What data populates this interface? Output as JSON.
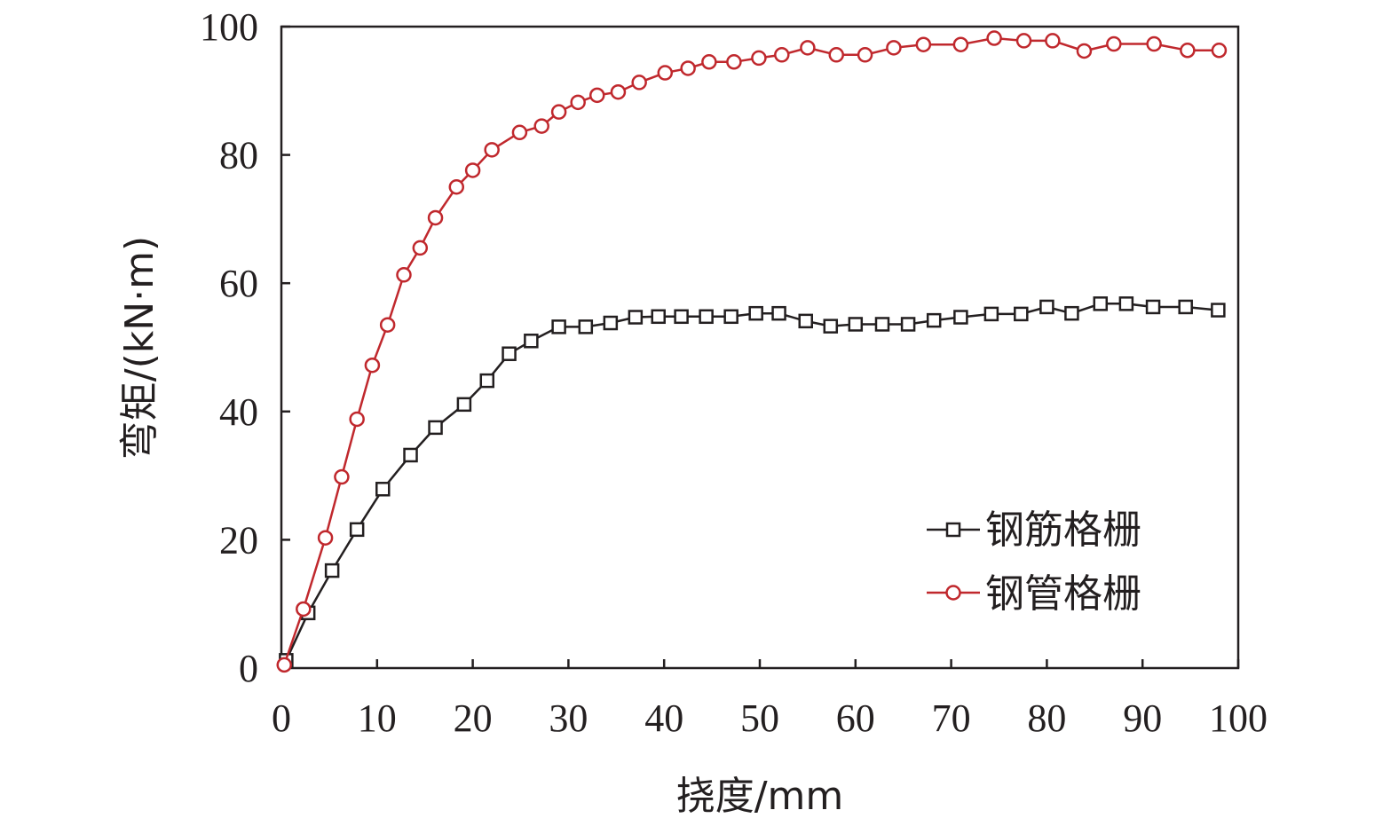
{
  "chart_data": {
    "type": "line",
    "xlabel": "挠度/mm",
    "ylabel": "弯矩/(kN·m)",
    "xlim": [
      0,
      100
    ],
    "ylim": [
      0,
      100
    ],
    "xticks": [
      0,
      10,
      20,
      30,
      40,
      50,
      60,
      70,
      80,
      90,
      100
    ],
    "yticks": [
      0,
      20,
      40,
      60,
      80,
      100
    ],
    "xtick_labels": [
      "0",
      "10",
      "20",
      "30",
      "40",
      "50",
      "60",
      "70",
      "80",
      "90",
      "100"
    ],
    "ytick_labels": [
      "0",
      "20",
      "40",
      "60",
      "80",
      "100"
    ],
    "grid": false,
    "legend_position": "bottom-right",
    "series": [
      {
        "name": "钢筋格栅",
        "color": "#231f20",
        "marker": "square",
        "x": [
          0.5,
          2.8,
          5.3,
          7.9,
          10.6,
          13.5,
          16.1,
          19.1,
          21.5,
          23.8,
          26.1,
          29.0,
          31.8,
          34.4,
          37.0,
          39.4,
          41.8,
          44.4,
          47.0,
          49.6,
          52.0,
          54.8,
          57.4,
          60.0,
          62.8,
          65.5,
          68.2,
          71.0,
          74.2,
          77.3,
          80.0,
          82.6,
          85.6,
          88.3,
          91.1,
          94.5,
          97.9
        ],
        "y": [
          1.2,
          8.6,
          15.2,
          21.6,
          27.9,
          33.2,
          37.5,
          41.1,
          44.8,
          49.0,
          51.0,
          53.2,
          53.2,
          53.8,
          54.7,
          54.8,
          54.8,
          54.8,
          54.8,
          55.3,
          55.3,
          54.1,
          53.3,
          53.6,
          53.6,
          53.6,
          54.2,
          54.7,
          55.2,
          55.2,
          56.3,
          55.3,
          56.8,
          56.8,
          56.3,
          56.3,
          55.8
        ]
      },
      {
        "name": "钢管格栅",
        "color": "#c0282d",
        "marker": "circle",
        "x": [
          0.3,
          2.3,
          4.6,
          6.3,
          7.9,
          9.5,
          11.1,
          12.8,
          14.5,
          16.1,
          18.3,
          20.0,
          22.0,
          24.9,
          27.2,
          29.0,
          31.0,
          33.0,
          35.2,
          37.4,
          40.1,
          42.5,
          44.7,
          47.3,
          49.9,
          52.3,
          55.0,
          58.0,
          61.0,
          64.0,
          67.1,
          71.0,
          74.5,
          77.6,
          80.6,
          83.9,
          87.0,
          91.2,
          94.7,
          98.0
        ],
        "y": [
          0.5,
          9.2,
          20.3,
          29.8,
          38.8,
          47.2,
          53.5,
          61.3,
          65.5,
          70.2,
          75.0,
          77.6,
          80.8,
          83.5,
          84.5,
          86.7,
          88.2,
          89.3,
          89.8,
          91.3,
          92.8,
          93.5,
          94.5,
          94.5,
          95.1,
          95.6,
          96.7,
          95.6,
          95.6,
          96.7,
          97.2,
          97.2,
          98.2,
          97.8,
          97.8,
          96.2,
          97.3,
          97.3,
          96.3,
          96.3
        ]
      }
    ]
  }
}
